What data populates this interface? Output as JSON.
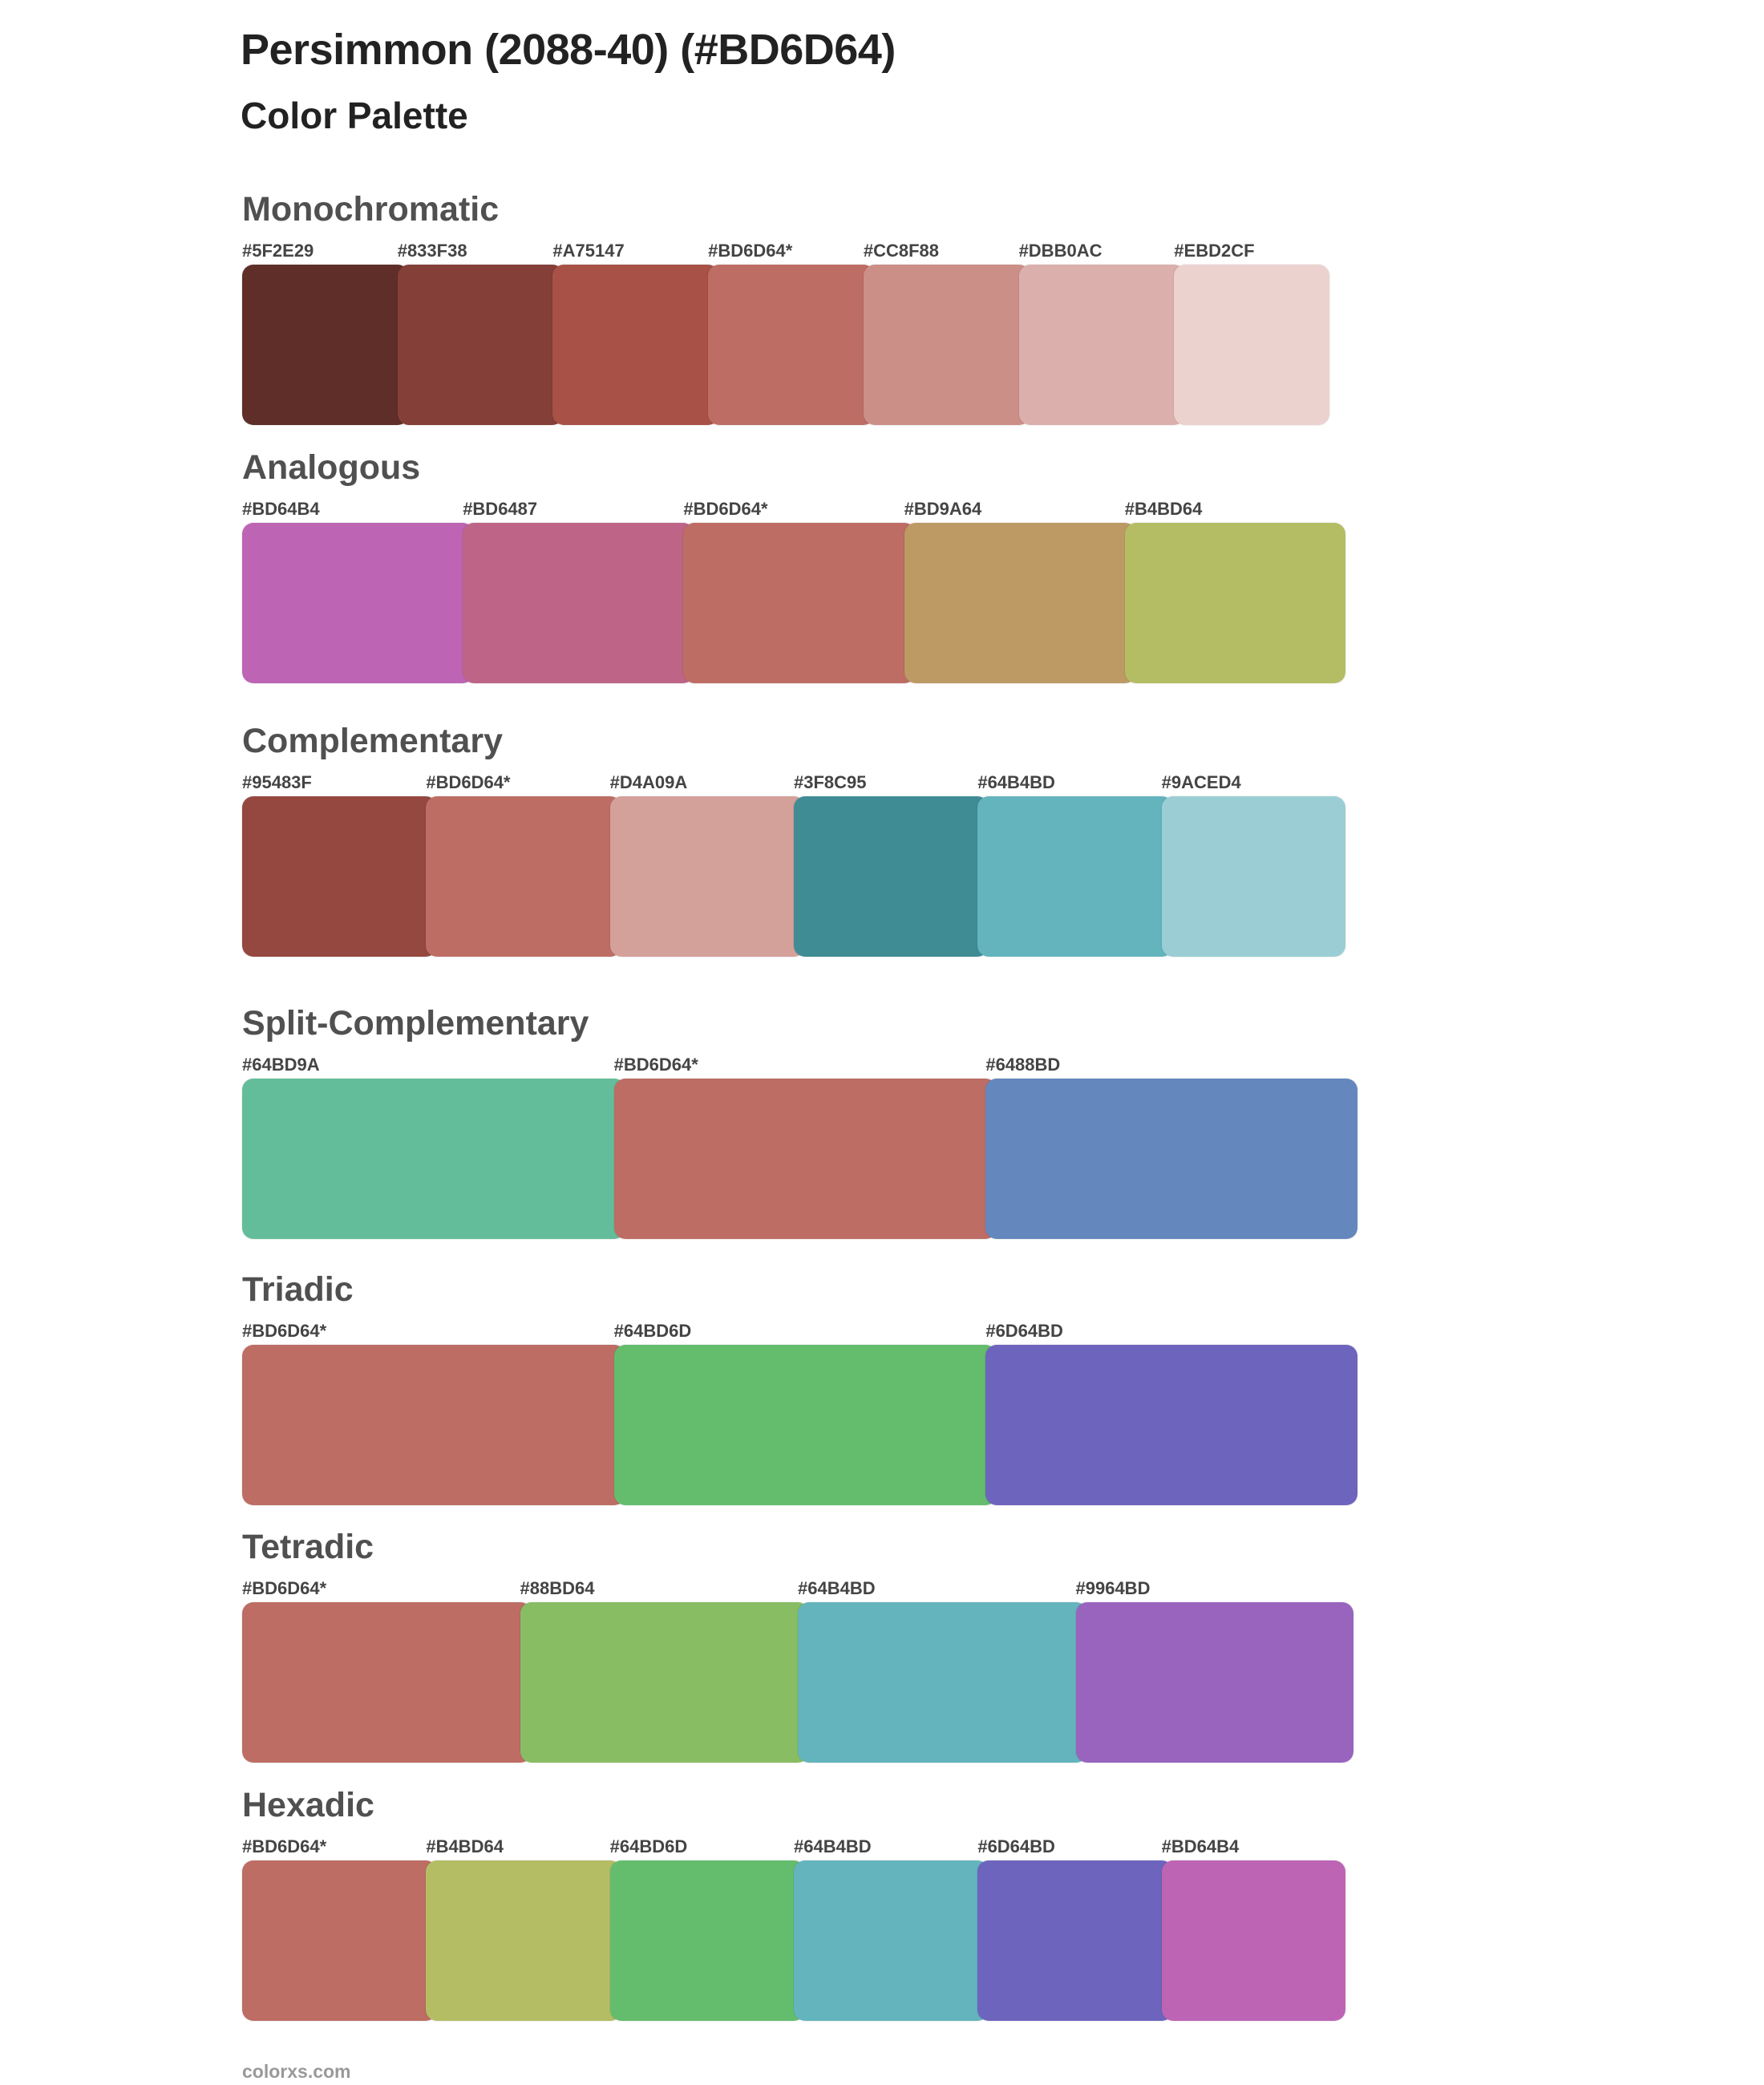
{
  "header": {
    "title": "Persimmon (2088-40) (#BD6D64)",
    "subtitle": "Color Palette"
  },
  "sections": [
    {
      "name": "Monochromatic",
      "colors": [
        "#5F2E29",
        "#833F38",
        "#A75147",
        "#BD6D64*",
        "#CC8F88",
        "#DBB0AC",
        "#EBD2CF"
      ]
    },
    {
      "name": "Analogous",
      "colors": [
        "#BD64B4",
        "#BD6487",
        "#BD6D64*",
        "#BD9A64",
        "#B4BD64"
      ]
    },
    {
      "name": "Complementary",
      "colors": [
        "#95483F",
        "#BD6D64*",
        "#D4A09A",
        "#3F8C95",
        "#64B4BD",
        "#9ACED4"
      ]
    },
    {
      "name": "Split-Complementary",
      "colors": [
        "#64BD9A",
        "#BD6D64*",
        "#6488BD"
      ]
    },
    {
      "name": "Triadic",
      "colors": [
        "#BD6D64*",
        "#64BD6D",
        "#6D64BD"
      ]
    },
    {
      "name": "Tetradic",
      "colors": [
        "#BD6D64*",
        "#88BD64",
        "#64B4BD",
        "#9964BD"
      ]
    },
    {
      "name": "Hexadic",
      "colors": [
        "#BD6D64*",
        "#B4BD64",
        "#64BD6D",
        "#64B4BD",
        "#6D64BD",
        "#BD64B4"
      ]
    }
  ],
  "footer": {
    "site": "colorxs.com"
  }
}
